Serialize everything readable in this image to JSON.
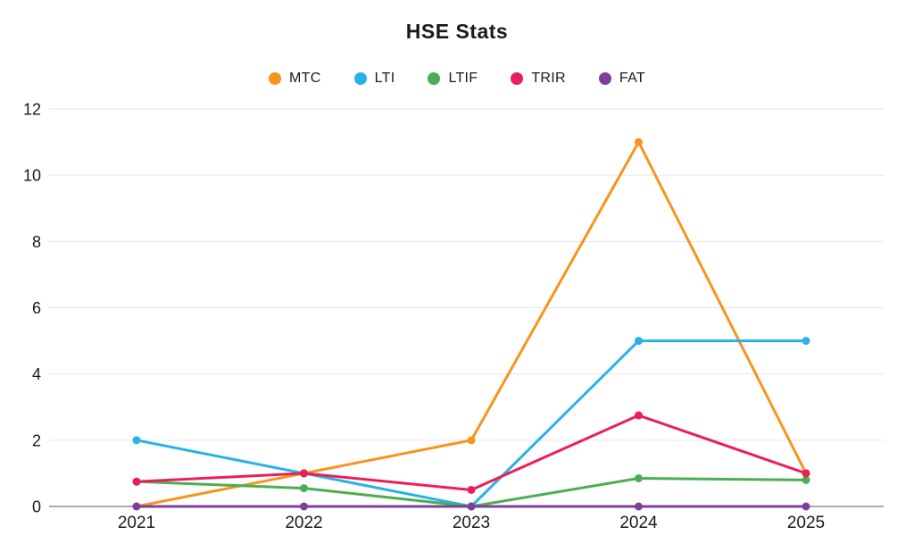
{
  "page": {
    "background_color": "#ffffff",
    "text_color": "#1a1a1a"
  },
  "chart_data": {
    "type": "line",
    "title": "HSE Stats",
    "xlabel": "",
    "ylabel": "",
    "categories": [
      "2021",
      "2022",
      "2023",
      "2024",
      "2025"
    ],
    "series": [
      {
        "name": "MTC",
        "color": "#F7941E",
        "values": [
          0,
          1,
          2,
          11,
          1
        ]
      },
      {
        "name": "LTI",
        "color": "#29B2E8",
        "values": [
          2,
          1,
          0,
          5,
          5
        ]
      },
      {
        "name": "LTIF",
        "color": "#4CAE50",
        "values": [
          0.75,
          0.55,
          0,
          0.85,
          0.8
        ]
      },
      {
        "name": "TRIR",
        "color": "#EC1E59",
        "values": [
          0.75,
          1,
          0.5,
          2.75,
          1
        ]
      },
      {
        "name": "FAT",
        "color": "#7E3F98",
        "values": [
          0,
          0,
          0,
          0,
          0
        ]
      }
    ],
    "y_axis": {
      "min": 0,
      "max": 12,
      "tick_step": 2,
      "ticks": [
        0,
        2,
        4,
        6,
        8,
        10,
        12
      ]
    },
    "legend_position": "top",
    "grid": "horizontal",
    "marker": "circle",
    "gridline_color": "#e6e6e6",
    "axis_line_color": "#8e8e8e"
  }
}
